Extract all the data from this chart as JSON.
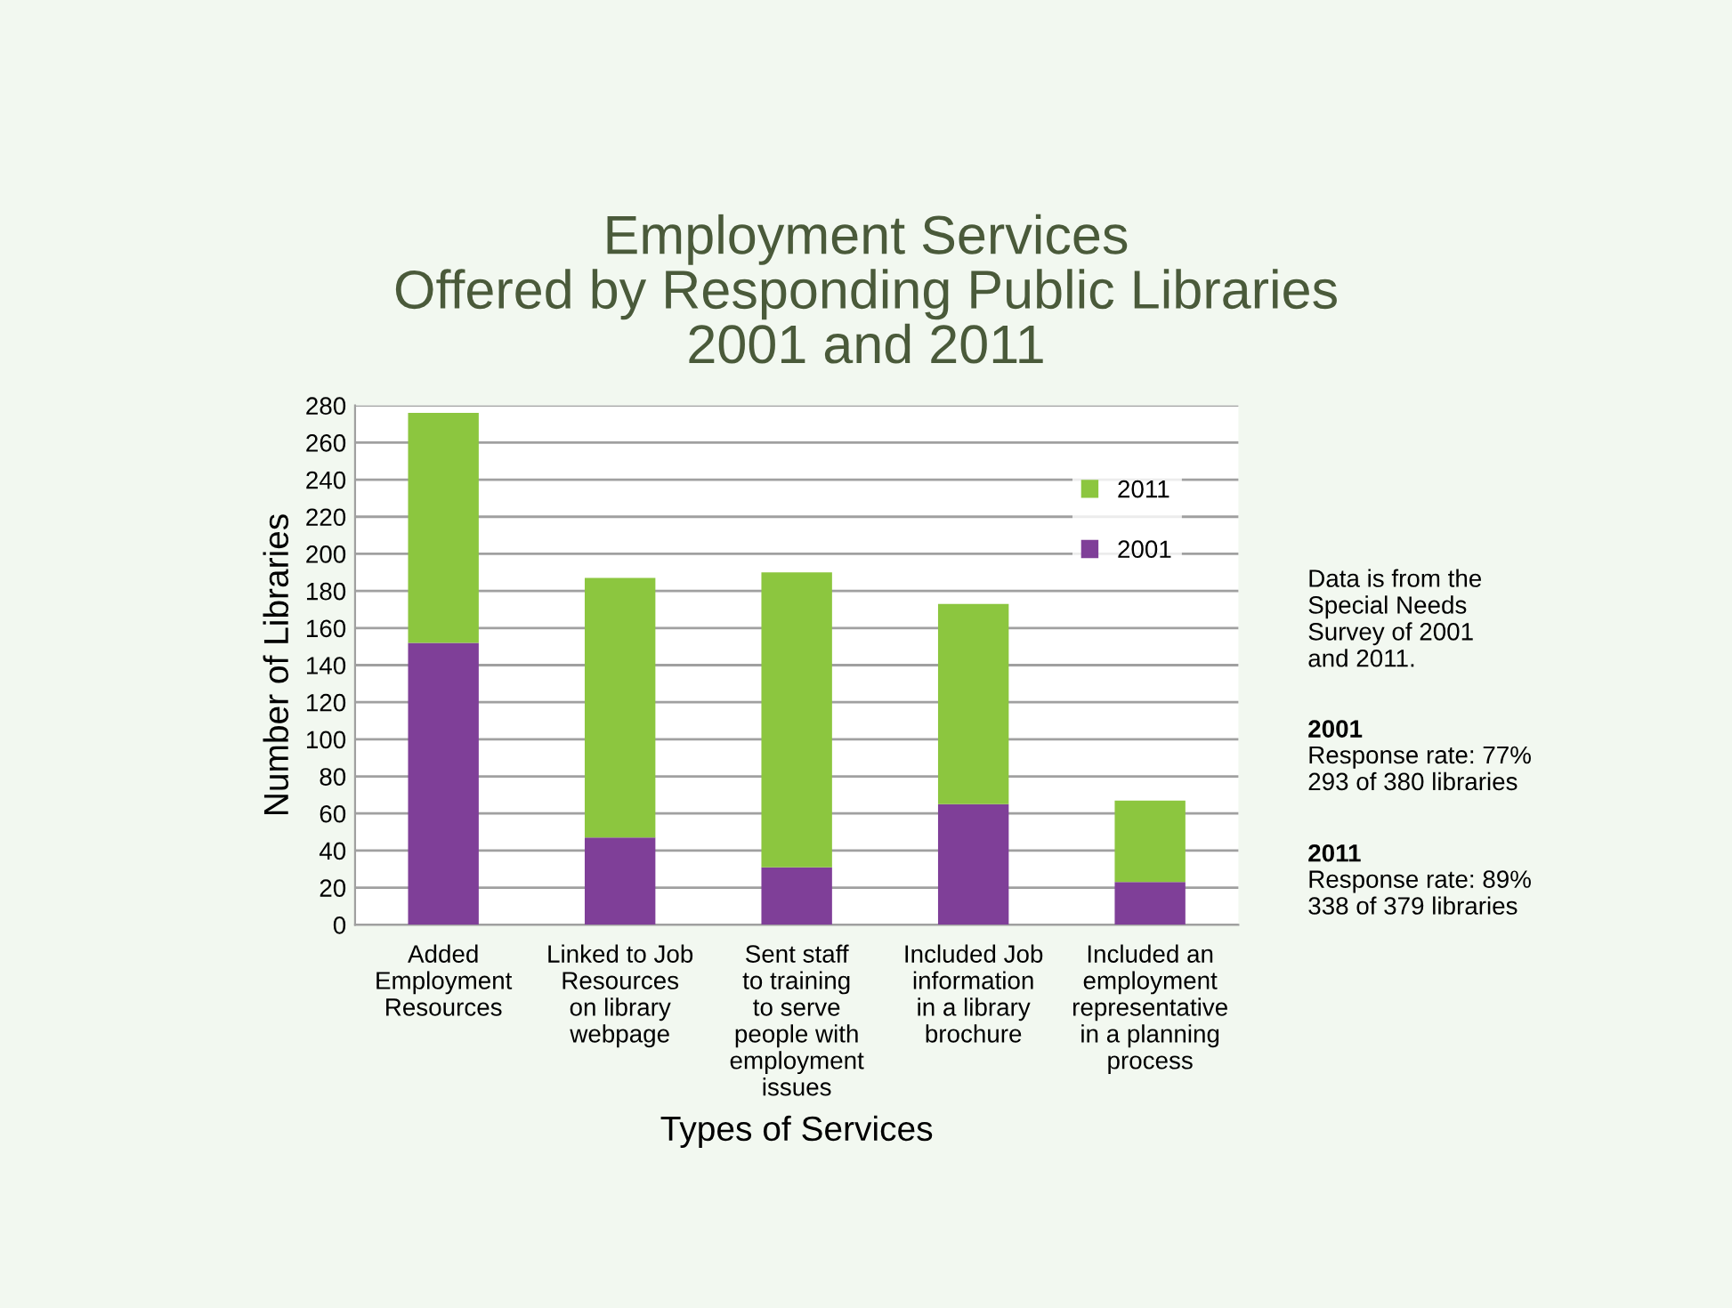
{
  "chart_data": {
    "type": "bar",
    "stacked": true,
    "title": "Employment Services\nOffered by Responding Public Libraries\n2001 and 2011",
    "xlabel": "Types of Services",
    "ylabel": "Number of Libraries",
    "categories": [
      "Added\nEmployment\nResources",
      "Linked to Job\nResources\non library\nwebpage",
      "Sent staff\nto training\nto serve\npeople with\nemployment\nissues",
      "Included Job\ninformation\nin a library\nbrochure",
      "Included an\nemployment\nrepresentative\nin a planning\nprocess"
    ],
    "series": [
      {
        "name": "2001",
        "color": "#7f3f98",
        "values": [
          152,
          47,
          31,
          65,
          23
        ]
      },
      {
        "name": "2011",
        "color": "#8cc63f",
        "values": [
          124,
          140,
          159,
          108,
          44
        ]
      }
    ],
    "ylim": [
      0,
      280
    ],
    "yticks": [
      0,
      20,
      40,
      60,
      80,
      100,
      120,
      140,
      160,
      180,
      200,
      220,
      240,
      260,
      280
    ],
    "grid": "y",
    "legend": "top right",
    "annotations": [
      "Data is from the\nSpecial Needs\nSurvey of 2001\nand 2011.",
      "2001\nResponse rate: 77%\n293 of 380 libraries",
      "2011\nResponse rate: 89%\n338 of 379 libraries"
    ]
  }
}
